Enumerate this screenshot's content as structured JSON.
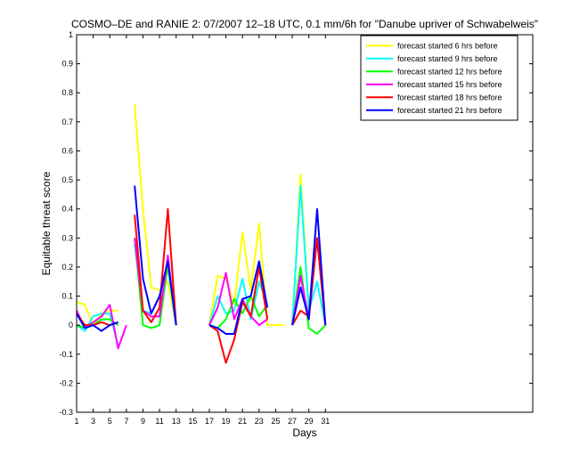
{
  "chart_data": {
    "type": "line",
    "title": "COSMO–DE and RANIE 2: 07/2007 12–18 UTC, 0.1 mm/6h for \"Danube upriver of Schwabelweis\"",
    "xlabel": "Days",
    "ylabel": "Equitable threat score",
    "xlim": [
      1,
      56
    ],
    "ylim": [
      -0.3,
      1.0
    ],
    "xticks": [
      1,
      3,
      5,
      7,
      9,
      11,
      13,
      15,
      17,
      19,
      21,
      23,
      25,
      27,
      29,
      31
    ],
    "yticks": [
      -0.3,
      -0.2,
      -0.1,
      0,
      0.1,
      0.2,
      0.3,
      0.4,
      0.5,
      0.6,
      0.7,
      0.8,
      0.9,
      1
    ],
    "grid": false,
    "legend_position": "top-right",
    "series": [
      {
        "name": "forecast started 6 hrs before",
        "color": "#ffff00",
        "points": [
          [
            [
              1,
              0.08
            ],
            [
              2,
              0.07
            ],
            [
              3,
              0.0
            ],
            [
              4,
              0.04
            ],
            [
              5,
              0.05
            ],
            [
              6,
              0.05
            ]
          ],
          [
            [
              8,
              0.76
            ],
            [
              9,
              0.4
            ],
            [
              10,
              0.13
            ],
            [
              11,
              0.12
            ],
            [
              12,
              0.15
            ],
            [
              13,
              0.0
            ]
          ],
          [
            [
              17,
              0.0
            ],
            [
              18,
              0.17
            ],
            [
              19,
              0.16
            ],
            [
              20,
              0.07
            ],
            [
              21,
              0.32
            ],
            [
              22,
              0.12
            ],
            [
              23,
              0.35
            ],
            [
              24,
              0.0
            ],
            [
              25,
              0.0
            ],
            [
              26,
              0.0
            ]
          ],
          [
            [
              27,
              0.0
            ],
            [
              28,
              0.52
            ],
            [
              29,
              0.05
            ],
            [
              30,
              0.3
            ],
            [
              31,
              0.0
            ]
          ]
        ]
      },
      {
        "name": "forecast started 9 hrs before",
        "color": "#00ffff",
        "points": [
          [
            [
              1,
              0.0
            ],
            [
              2,
              -0.02
            ],
            [
              3,
              0.03
            ],
            [
              4,
              0.04
            ],
            [
              5,
              0.04
            ],
            [
              6,
              -0.07
            ]
          ],
          [
            [
              8,
              0.28
            ],
            [
              9,
              0.05
            ],
            [
              10,
              0.04
            ],
            [
              11,
              0.1
            ],
            [
              12,
              0.2
            ],
            [
              13,
              0.0
            ]
          ],
          [
            [
              17,
              0.0
            ],
            [
              18,
              0.1
            ],
            [
              19,
              0.04
            ],
            [
              20,
              0.05
            ],
            [
              21,
              0.16
            ],
            [
              22,
              0.02
            ],
            [
              23,
              0.15
            ],
            [
              24,
              0.07
            ]
          ],
          [
            [
              27,
              0.0
            ],
            [
              28,
              0.48
            ],
            [
              29,
              0.05
            ],
            [
              30,
              0.15
            ],
            [
              31,
              0.0
            ]
          ]
        ]
      },
      {
        "name": "forecast started 12 hrs before",
        "color": "#00ff00",
        "points": [
          [
            [
              1,
              0.0
            ],
            [
              2,
              -0.01
            ],
            [
              3,
              0.0
            ],
            [
              4,
              0.02
            ],
            [
              5,
              0.02
            ],
            [
              6,
              0.0
            ]
          ],
          [
            [
              8,
              0.3
            ],
            [
              9,
              0.0
            ],
            [
              10,
              -0.01
            ],
            [
              11,
              0.0
            ],
            [
              12,
              0.21
            ],
            [
              13,
              0.0
            ]
          ],
          [
            [
              17,
              0.0
            ],
            [
              18,
              -0.01
            ],
            [
              19,
              0.02
            ],
            [
              20,
              0.09
            ],
            [
              21,
              0.04
            ],
            [
              22,
              0.1
            ],
            [
              23,
              0.03
            ],
            [
              24,
              0.07
            ]
          ],
          [
            [
              27,
              0.0
            ],
            [
              28,
              0.2
            ],
            [
              29,
              -0.01
            ],
            [
              30,
              -0.03
            ],
            [
              31,
              0.0
            ]
          ]
        ]
      },
      {
        "name": "forecast started 15 hrs before",
        "color": "#ff00ff",
        "points": [
          [
            [
              1,
              0.05
            ],
            [
              2,
              -0.01
            ],
            [
              3,
              0.01
            ],
            [
              4,
              0.03
            ],
            [
              5,
              0.07
            ],
            [
              6,
              -0.08
            ],
            [
              7,
              0.0
            ]
          ],
          [
            [
              8,
              0.3
            ],
            [
              9,
              0.05
            ],
            [
              10,
              0.03
            ],
            [
              11,
              0.03
            ],
            [
              12,
              0.24
            ],
            [
              13,
              0.0
            ]
          ],
          [
            [
              17,
              0.0
            ],
            [
              18,
              0.06
            ],
            [
              19,
              0.18
            ],
            [
              20,
              0.02
            ],
            [
              21,
              0.09
            ],
            [
              22,
              0.03
            ],
            [
              23,
              0.0
            ],
            [
              24,
              0.02
            ]
          ],
          [
            [
              27,
              0.0
            ],
            [
              28,
              0.17
            ],
            [
              29,
              0.02
            ],
            [
              30,
              0.3
            ],
            [
              31,
              0.0
            ]
          ]
        ]
      },
      {
        "name": "forecast started 18 hrs before",
        "color": "#ff0000",
        "points": [
          [
            [
              1,
              0.04
            ],
            [
              2,
              0.0
            ],
            [
              3,
              0.0
            ],
            [
              4,
              0.01
            ],
            [
              5,
              0.0
            ],
            [
              6,
              0.01
            ]
          ],
          [
            [
              8,
              0.38
            ],
            [
              9,
              0.05
            ],
            [
              10,
              0.01
            ],
            [
              11,
              0.06
            ],
            [
              12,
              0.4
            ],
            [
              13,
              0.0
            ]
          ],
          [
            [
              17,
              0.0
            ],
            [
              18,
              -0.02
            ],
            [
              19,
              -0.13
            ],
            [
              20,
              -0.05
            ],
            [
              21,
              0.08
            ],
            [
              22,
              0.03
            ],
            [
              23,
              0.2
            ],
            [
              24,
              0.02
            ]
          ],
          [
            [
              27,
              0.0
            ],
            [
              28,
              0.05
            ],
            [
              29,
              0.03
            ],
            [
              30,
              0.3
            ],
            [
              31,
              0.0
            ]
          ]
        ]
      },
      {
        "name": "forecast started 21 hrs before",
        "color": "#0000ff",
        "points": [
          [
            [
              1,
              0.04
            ],
            [
              2,
              -0.01
            ],
            [
              3,
              0.0
            ],
            [
              4,
              -0.02
            ],
            [
              5,
              0.0
            ],
            [
              6,
              0.01
            ]
          ],
          [
            [
              8,
              0.48
            ],
            [
              9,
              0.16
            ],
            [
              10,
              0.04
            ],
            [
              11,
              0.1
            ],
            [
              12,
              0.22
            ],
            [
              13,
              0.0
            ]
          ],
          [
            [
              17,
              0.0
            ],
            [
              18,
              -0.01
            ],
            [
              19,
              -0.03
            ],
            [
              20,
              -0.03
            ],
            [
              21,
              0.09
            ],
            [
              22,
              0.1
            ],
            [
              23,
              0.22
            ],
            [
              24,
              0.06
            ]
          ],
          [
            [
              27,
              0.0
            ],
            [
              28,
              0.13
            ],
            [
              29,
              0.02
            ],
            [
              30,
              0.4
            ],
            [
              31,
              0.0
            ]
          ]
        ]
      }
    ]
  }
}
